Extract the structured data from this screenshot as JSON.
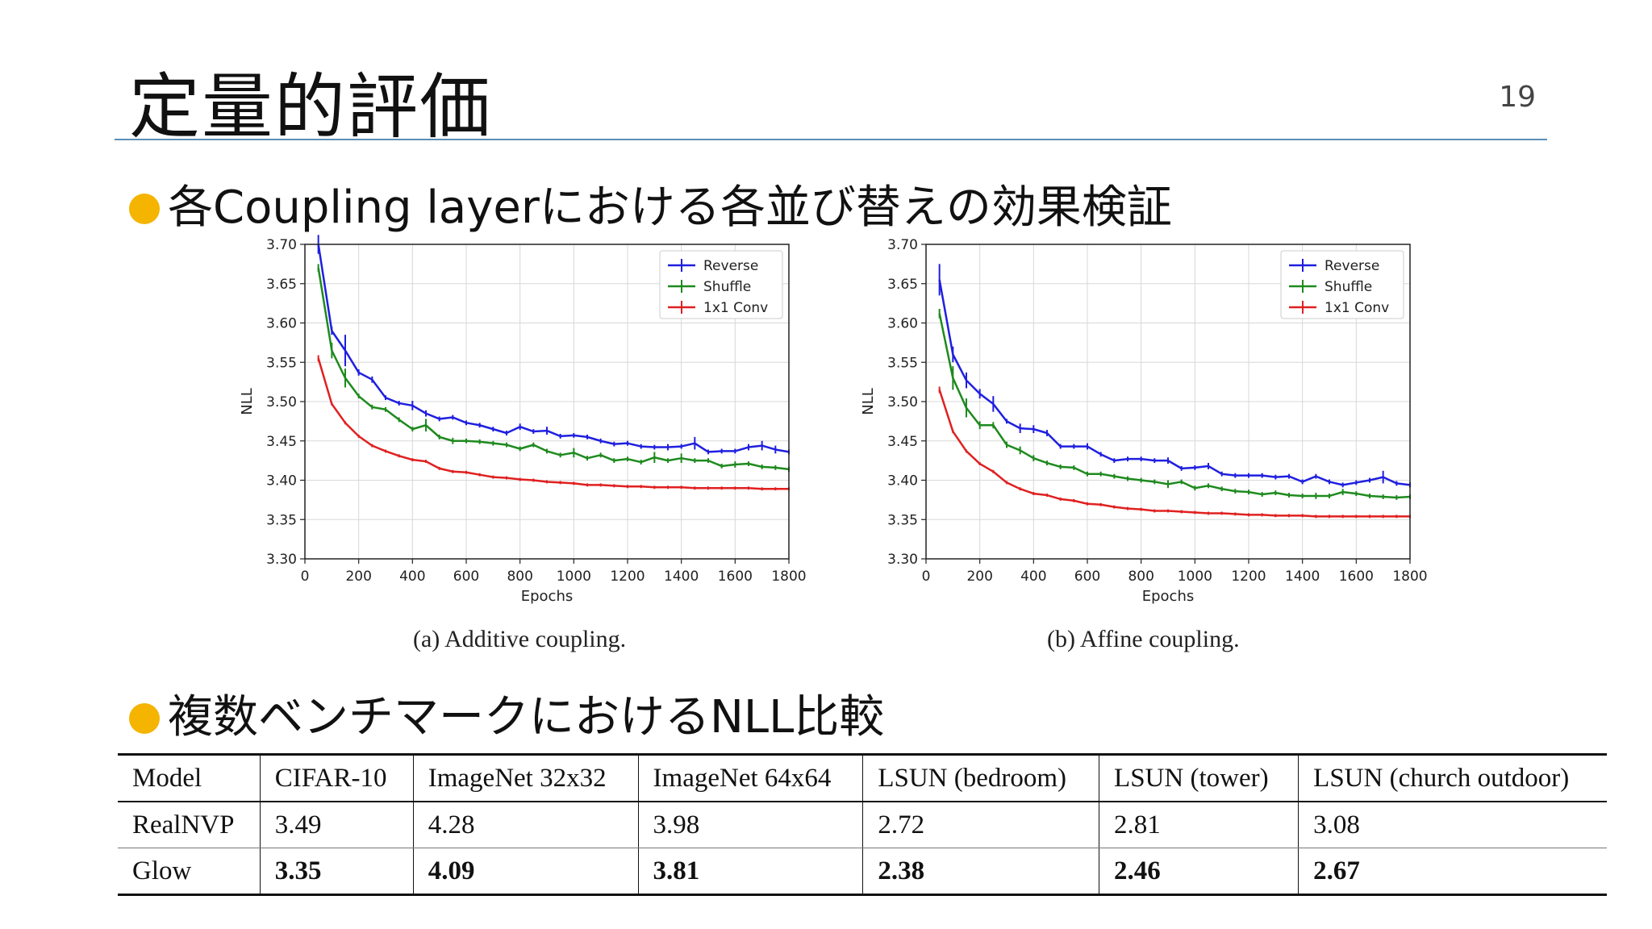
{
  "slide": {
    "title": "定量的評価",
    "page_number": "19",
    "bullet1": "各Coupling layerにおける各並び替えの効果検証",
    "bullet2": "複数ベンチマークにおけるNLL比較"
  },
  "captions": {
    "a": "(a) Additive coupling.",
    "b": "(b) Affine coupling."
  },
  "colors": {
    "reverse": "#1f1fe0",
    "shuffle": "#1e8a1e",
    "conv": "#e02020",
    "accent": "#f4b400",
    "rule": "#5b8fb9"
  },
  "chart_data": [
    {
      "type": "line",
      "title": "",
      "xlabel": "Epochs",
      "ylabel": "NLL",
      "xlim": [
        0,
        1800
      ],
      "ylim": [
        3.3,
        3.7
      ],
      "xticks": [
        0,
        200,
        400,
        600,
        800,
        1000,
        1200,
        1400,
        1600,
        1800
      ],
      "yticks": [
        "3.30",
        "3.35",
        "3.40",
        "3.45",
        "3.50",
        "3.55",
        "3.60",
        "3.65",
        "3.70"
      ],
      "grid": true,
      "legend": "top-right",
      "series": [
        {
          "name": "Reverse",
          "color": "#1f1fe0",
          "x": [
            50,
            100,
            150,
            200,
            250,
            300,
            350,
            400,
            450,
            500,
            550,
            600,
            650,
            700,
            750,
            800,
            850,
            900,
            950,
            1000,
            1050,
            1100,
            1150,
            1200,
            1250,
            1300,
            1350,
            1400,
            1450,
            1500,
            1550,
            1600,
            1650,
            1700,
            1750,
            1800
          ],
          "y": [
            3.7,
            3.59,
            3.565,
            3.537,
            3.528,
            3.505,
            3.498,
            3.495,
            3.485,
            3.478,
            3.48,
            3.473,
            3.47,
            3.465,
            3.46,
            3.468,
            3.462,
            3.463,
            3.456,
            3.457,
            3.455,
            3.45,
            3.446,
            3.447,
            3.443,
            3.442,
            3.442,
            3.443,
            3.447,
            3.436,
            3.437,
            3.437,
            3.442,
            3.444,
            3.439,
            3.436
          ],
          "err": [
            0.012,
            0.005,
            0.02,
            0.004,
            0.004,
            0.003,
            0.003,
            0.006,
            0.004,
            0.003,
            0.003,
            0.003,
            0.003,
            0.003,
            0.003,
            0.004,
            0.003,
            0.005,
            0.003,
            0.003,
            0.003,
            0.003,
            0.003,
            0.003,
            0.003,
            0.003,
            0.004,
            0.003,
            0.008,
            0.003,
            0.003,
            0.003,
            0.004,
            0.006,
            0.005,
            0.003
          ]
        },
        {
          "name": "Shuffle",
          "color": "#1e8a1e",
          "x": [
            50,
            100,
            150,
            200,
            250,
            300,
            350,
            400,
            450,
            500,
            550,
            600,
            650,
            700,
            750,
            800,
            850,
            900,
            950,
            1000,
            1050,
            1100,
            1150,
            1200,
            1250,
            1300,
            1350,
            1400,
            1450,
            1500,
            1550,
            1600,
            1650,
            1700,
            1750,
            1800
          ],
          "y": [
            3.67,
            3.565,
            3.53,
            3.507,
            3.493,
            3.49,
            3.477,
            3.465,
            3.47,
            3.455,
            3.45,
            3.45,
            3.449,
            3.447,
            3.445,
            3.44,
            3.445,
            3.437,
            3.432,
            3.435,
            3.428,
            3.432,
            3.425,
            3.427,
            3.423,
            3.429,
            3.425,
            3.428,
            3.425,
            3.425,
            3.418,
            3.42,
            3.421,
            3.417,
            3.416,
            3.414
          ],
          "err": [
            0.005,
            0.01,
            0.012,
            0.003,
            0.003,
            0.003,
            0.003,
            0.003,
            0.008,
            0.003,
            0.004,
            0.003,
            0.003,
            0.003,
            0.003,
            0.003,
            0.003,
            0.003,
            0.003,
            0.006,
            0.003,
            0.003,
            0.003,
            0.003,
            0.003,
            0.007,
            0.003,
            0.006,
            0.003,
            0.003,
            0.003,
            0.004,
            0.003,
            0.003,
            0.003,
            0.003
          ]
        },
        {
          "name": "1x1 Conv",
          "color": "#e02020",
          "x": [
            50,
            100,
            150,
            200,
            250,
            300,
            350,
            400,
            450,
            500,
            550,
            600,
            650,
            700,
            750,
            800,
            850,
            900,
            950,
            1000,
            1050,
            1100,
            1150,
            1200,
            1250,
            1300,
            1350,
            1400,
            1450,
            1500,
            1550,
            1600,
            1650,
            1700,
            1750,
            1800
          ],
          "y": [
            3.555,
            3.497,
            3.473,
            3.456,
            3.444,
            3.437,
            3.431,
            3.426,
            3.424,
            3.415,
            3.411,
            3.41,
            3.407,
            3.404,
            3.403,
            3.401,
            3.4,
            3.398,
            3.397,
            3.396,
            3.394,
            3.394,
            3.393,
            3.392,
            3.392,
            3.391,
            3.391,
            3.391,
            3.39,
            3.39,
            3.39,
            3.39,
            3.39,
            3.389,
            3.389,
            3.389
          ],
          "err": [
            0.004,
            0.002,
            0.002,
            0.002,
            0.002,
            0.002,
            0.002,
            0.002,
            0.002,
            0.002,
            0.002,
            0.002,
            0.002,
            0.002,
            0.002,
            0.002,
            0.002,
            0.002,
            0.002,
            0.002,
            0.002,
            0.002,
            0.002,
            0.002,
            0.002,
            0.002,
            0.002,
            0.002,
            0.002,
            0.002,
            0.002,
            0.002,
            0.002,
            0.002,
            0.002,
            0.002
          ]
        }
      ]
    },
    {
      "type": "line",
      "title": "",
      "xlabel": "Epochs",
      "ylabel": "NLL",
      "xlim": [
        0,
        1800
      ],
      "ylim": [
        3.3,
        3.7
      ],
      "xticks": [
        0,
        200,
        400,
        600,
        800,
        1000,
        1200,
        1400,
        1600,
        1800
      ],
      "yticks": [
        "3.30",
        "3.35",
        "3.40",
        "3.45",
        "3.50",
        "3.55",
        "3.60",
        "3.65",
        "3.70"
      ],
      "grid": true,
      "legend": "top-right",
      "series": [
        {
          "name": "Reverse",
          "color": "#1f1fe0",
          "x": [
            50,
            100,
            150,
            200,
            250,
            300,
            350,
            400,
            450,
            500,
            550,
            600,
            650,
            700,
            750,
            800,
            850,
            900,
            950,
            1000,
            1050,
            1100,
            1150,
            1200,
            1250,
            1300,
            1350,
            1400,
            1450,
            1500,
            1550,
            1600,
            1650,
            1700,
            1750,
            1800
          ],
          "y": [
            3.655,
            3.56,
            3.527,
            3.51,
            3.497,
            3.475,
            3.466,
            3.465,
            3.46,
            3.443,
            3.443,
            3.443,
            3.433,
            3.425,
            3.427,
            3.427,
            3.425,
            3.425,
            3.415,
            3.416,
            3.418,
            3.408,
            3.406,
            3.406,
            3.406,
            3.404,
            3.405,
            3.398,
            3.405,
            3.398,
            3.394,
            3.397,
            3.4,
            3.404,
            3.396,
            3.394
          ],
          "err": [
            0.02,
            0.01,
            0.01,
            0.006,
            0.01,
            0.003,
            0.006,
            0.005,
            0.004,
            0.003,
            0.003,
            0.004,
            0.003,
            0.003,
            0.003,
            0.003,
            0.003,
            0.004,
            0.003,
            0.003,
            0.004,
            0.003,
            0.003,
            0.003,
            0.003,
            0.003,
            0.003,
            0.003,
            0.003,
            0.003,
            0.003,
            0.003,
            0.003,
            0.008,
            0.003,
            0.003
          ]
        },
        {
          "name": "Shuffle",
          "color": "#1e8a1e",
          "x": [
            50,
            100,
            150,
            200,
            250,
            300,
            350,
            400,
            450,
            500,
            550,
            600,
            650,
            700,
            750,
            800,
            850,
            900,
            950,
            1000,
            1050,
            1100,
            1150,
            1200,
            1250,
            1300,
            1350,
            1400,
            1450,
            1500,
            1550,
            1600,
            1650,
            1700,
            1750,
            1800
          ],
          "y": [
            3.612,
            3.53,
            3.492,
            3.47,
            3.47,
            3.445,
            3.438,
            3.428,
            3.422,
            3.417,
            3.416,
            3.408,
            3.408,
            3.405,
            3.402,
            3.4,
            3.398,
            3.395,
            3.398,
            3.39,
            3.393,
            3.389,
            3.386,
            3.385,
            3.382,
            3.384,
            3.381,
            3.38,
            3.38,
            3.38,
            3.385,
            3.383,
            3.38,
            3.379,
            3.378,
            3.379
          ],
          "err": [
            0.006,
            0.015,
            0.012,
            0.005,
            0.004,
            0.004,
            0.005,
            0.004,
            0.003,
            0.003,
            0.003,
            0.003,
            0.003,
            0.003,
            0.003,
            0.003,
            0.003,
            0.005,
            0.003,
            0.003,
            0.003,
            0.003,
            0.003,
            0.003,
            0.003,
            0.003,
            0.003,
            0.003,
            0.004,
            0.003,
            0.004,
            0.003,
            0.003,
            0.003,
            0.003,
            0.003
          ]
        },
        {
          "name": "1x1 Conv",
          "color": "#e02020",
          "x": [
            50,
            100,
            150,
            200,
            250,
            300,
            350,
            400,
            450,
            500,
            550,
            600,
            650,
            700,
            750,
            800,
            850,
            900,
            950,
            1000,
            1050,
            1100,
            1150,
            1200,
            1250,
            1300,
            1350,
            1400,
            1450,
            1500,
            1550,
            1600,
            1650,
            1700,
            1750,
            1800
          ],
          "y": [
            3.515,
            3.462,
            3.437,
            3.421,
            3.411,
            3.397,
            3.389,
            3.383,
            3.381,
            3.376,
            3.374,
            3.37,
            3.369,
            3.366,
            3.364,
            3.363,
            3.361,
            3.361,
            3.36,
            3.359,
            3.358,
            3.358,
            3.357,
            3.356,
            3.356,
            3.355,
            3.355,
            3.355,
            3.354,
            3.354,
            3.354,
            3.354,
            3.354,
            3.354,
            3.354,
            3.354
          ],
          "err": [
            0.004,
            0.002,
            0.002,
            0.002,
            0.002,
            0.002,
            0.002,
            0.002,
            0.002,
            0.002,
            0.002,
            0.002,
            0.002,
            0.002,
            0.002,
            0.002,
            0.002,
            0.002,
            0.002,
            0.002,
            0.002,
            0.002,
            0.002,
            0.002,
            0.002,
            0.002,
            0.002,
            0.002,
            0.002,
            0.002,
            0.002,
            0.002,
            0.002,
            0.002,
            0.002,
            0.002
          ]
        }
      ]
    }
  ],
  "table": {
    "headers": [
      "Model",
      "CIFAR-10",
      "ImageNet 32x32",
      "ImageNet 64x64",
      "LSUN (bedroom)",
      "LSUN (tower)",
      "LSUN (church outdoor)"
    ],
    "rows": [
      {
        "model": "RealNVP",
        "values": [
          "3.49",
          "4.28",
          "3.98",
          "2.72",
          "2.81",
          "3.08"
        ],
        "bold": false
      },
      {
        "model": "Glow",
        "values": [
          "3.35",
          "4.09",
          "3.81",
          "2.38",
          "2.46",
          "2.67"
        ],
        "bold": true
      }
    ]
  }
}
